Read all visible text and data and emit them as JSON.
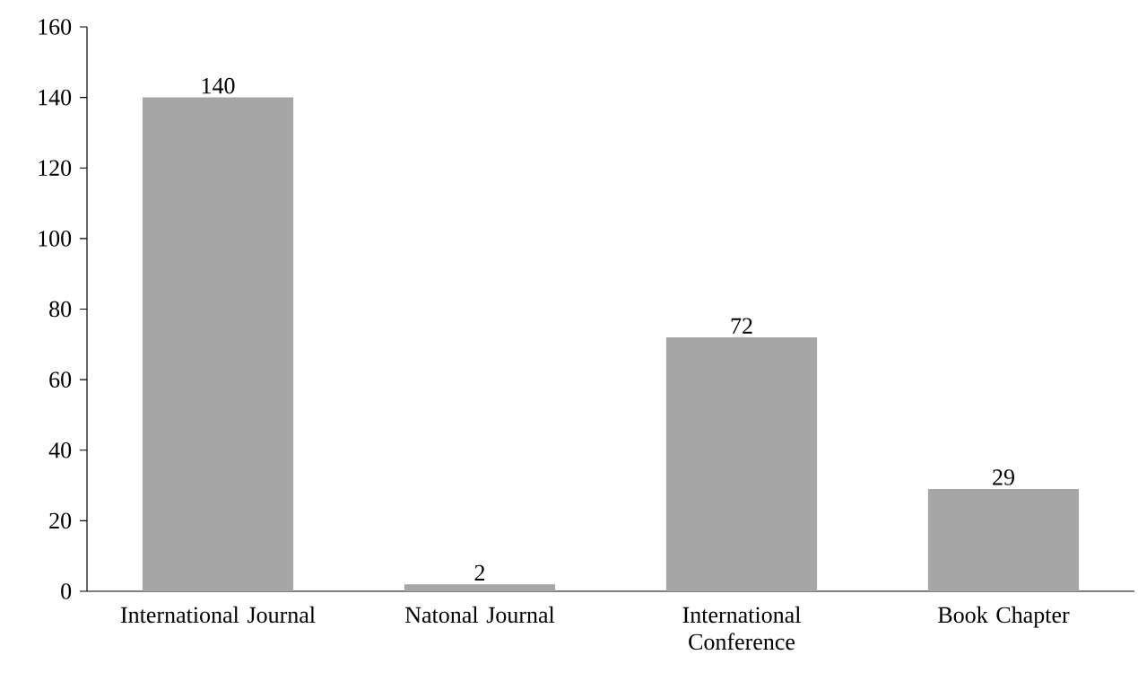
{
  "chart_data": {
    "type": "bar",
    "categories": [
      "International Journal",
      "Natonal Journal",
      "International Conference",
      "Book Chapter"
    ],
    "values": [
      140,
      2,
      72,
      29
    ],
    "color": "#a6a6a6",
    "ylim": [
      0,
      160
    ],
    "yticks": [
      0,
      20,
      40,
      60,
      80,
      100,
      120,
      140,
      160
    ],
    "data_labels": true
  }
}
